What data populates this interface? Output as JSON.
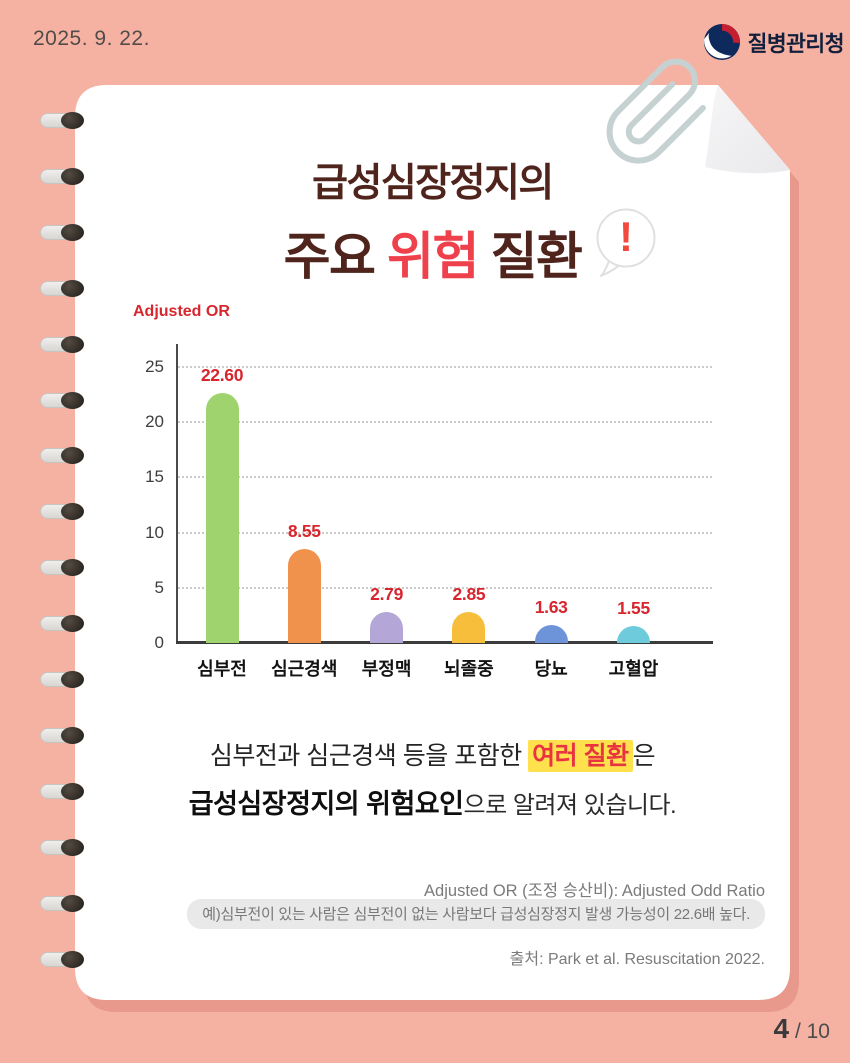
{
  "page": {
    "date": "2025. 9. 22.",
    "page_number": "4",
    "page_total": " / 10",
    "bg_color": "#F5B2A2",
    "card_shadow_color": "#E8998C"
  },
  "header": {
    "agency_name": "질병관리청"
  },
  "title": {
    "line1": "급성심장정지의",
    "line2_part1": "주요 ",
    "line2_highlight": "위험",
    "line2_part2": " 질환",
    "highlight_color": "#EE414B",
    "base_color": "#4F241C",
    "bubble_mark": "!"
  },
  "chart_data": {
    "type": "bar",
    "title": "급성심장정지의 주요 위험 질환",
    "axis_label": "Adjusted OR",
    "categories": [
      "심부전",
      "심근경색",
      "부정맥",
      "뇌졸중",
      "당뇨",
      "고혈압"
    ],
    "values": [
      22.6,
      8.55,
      2.79,
      2.85,
      1.63,
      1.55
    ],
    "value_labels": [
      "22.60",
      "8.55",
      "2.79",
      "2.85",
      "1.63",
      "1.55"
    ],
    "bar_colors": [
      "#9ED36E",
      "#F0914C",
      "#B4A6D6",
      "#F6BE3A",
      "#6D94D9",
      "#6DCBDB"
    ],
    "value_color": "#D7262E",
    "y_ticks": [
      0,
      5,
      10,
      15,
      20,
      25
    ],
    "ylim": [
      0,
      27
    ],
    "grid": "horizontal dotted",
    "legend": "none"
  },
  "description": {
    "line1_pre": "심부전과 심근경색 등을 포함한 ",
    "line1_highlight": "여러 질환",
    "line1_post": "은",
    "line2_bold": "급성심장정지의 위험요인",
    "line2_rest": "으로 알려져 있습니다."
  },
  "footnotes": {
    "definition": "Adjusted OR (조정 승산비): Adjusted Odd Ratio",
    "example": "예)심부전이 있는 사람은 심부전이 없는 사람보다 급성심장정지 발생 가능성이 22.6배 높다.",
    "source": "출처: Park et al. Resuscitation 2022."
  }
}
